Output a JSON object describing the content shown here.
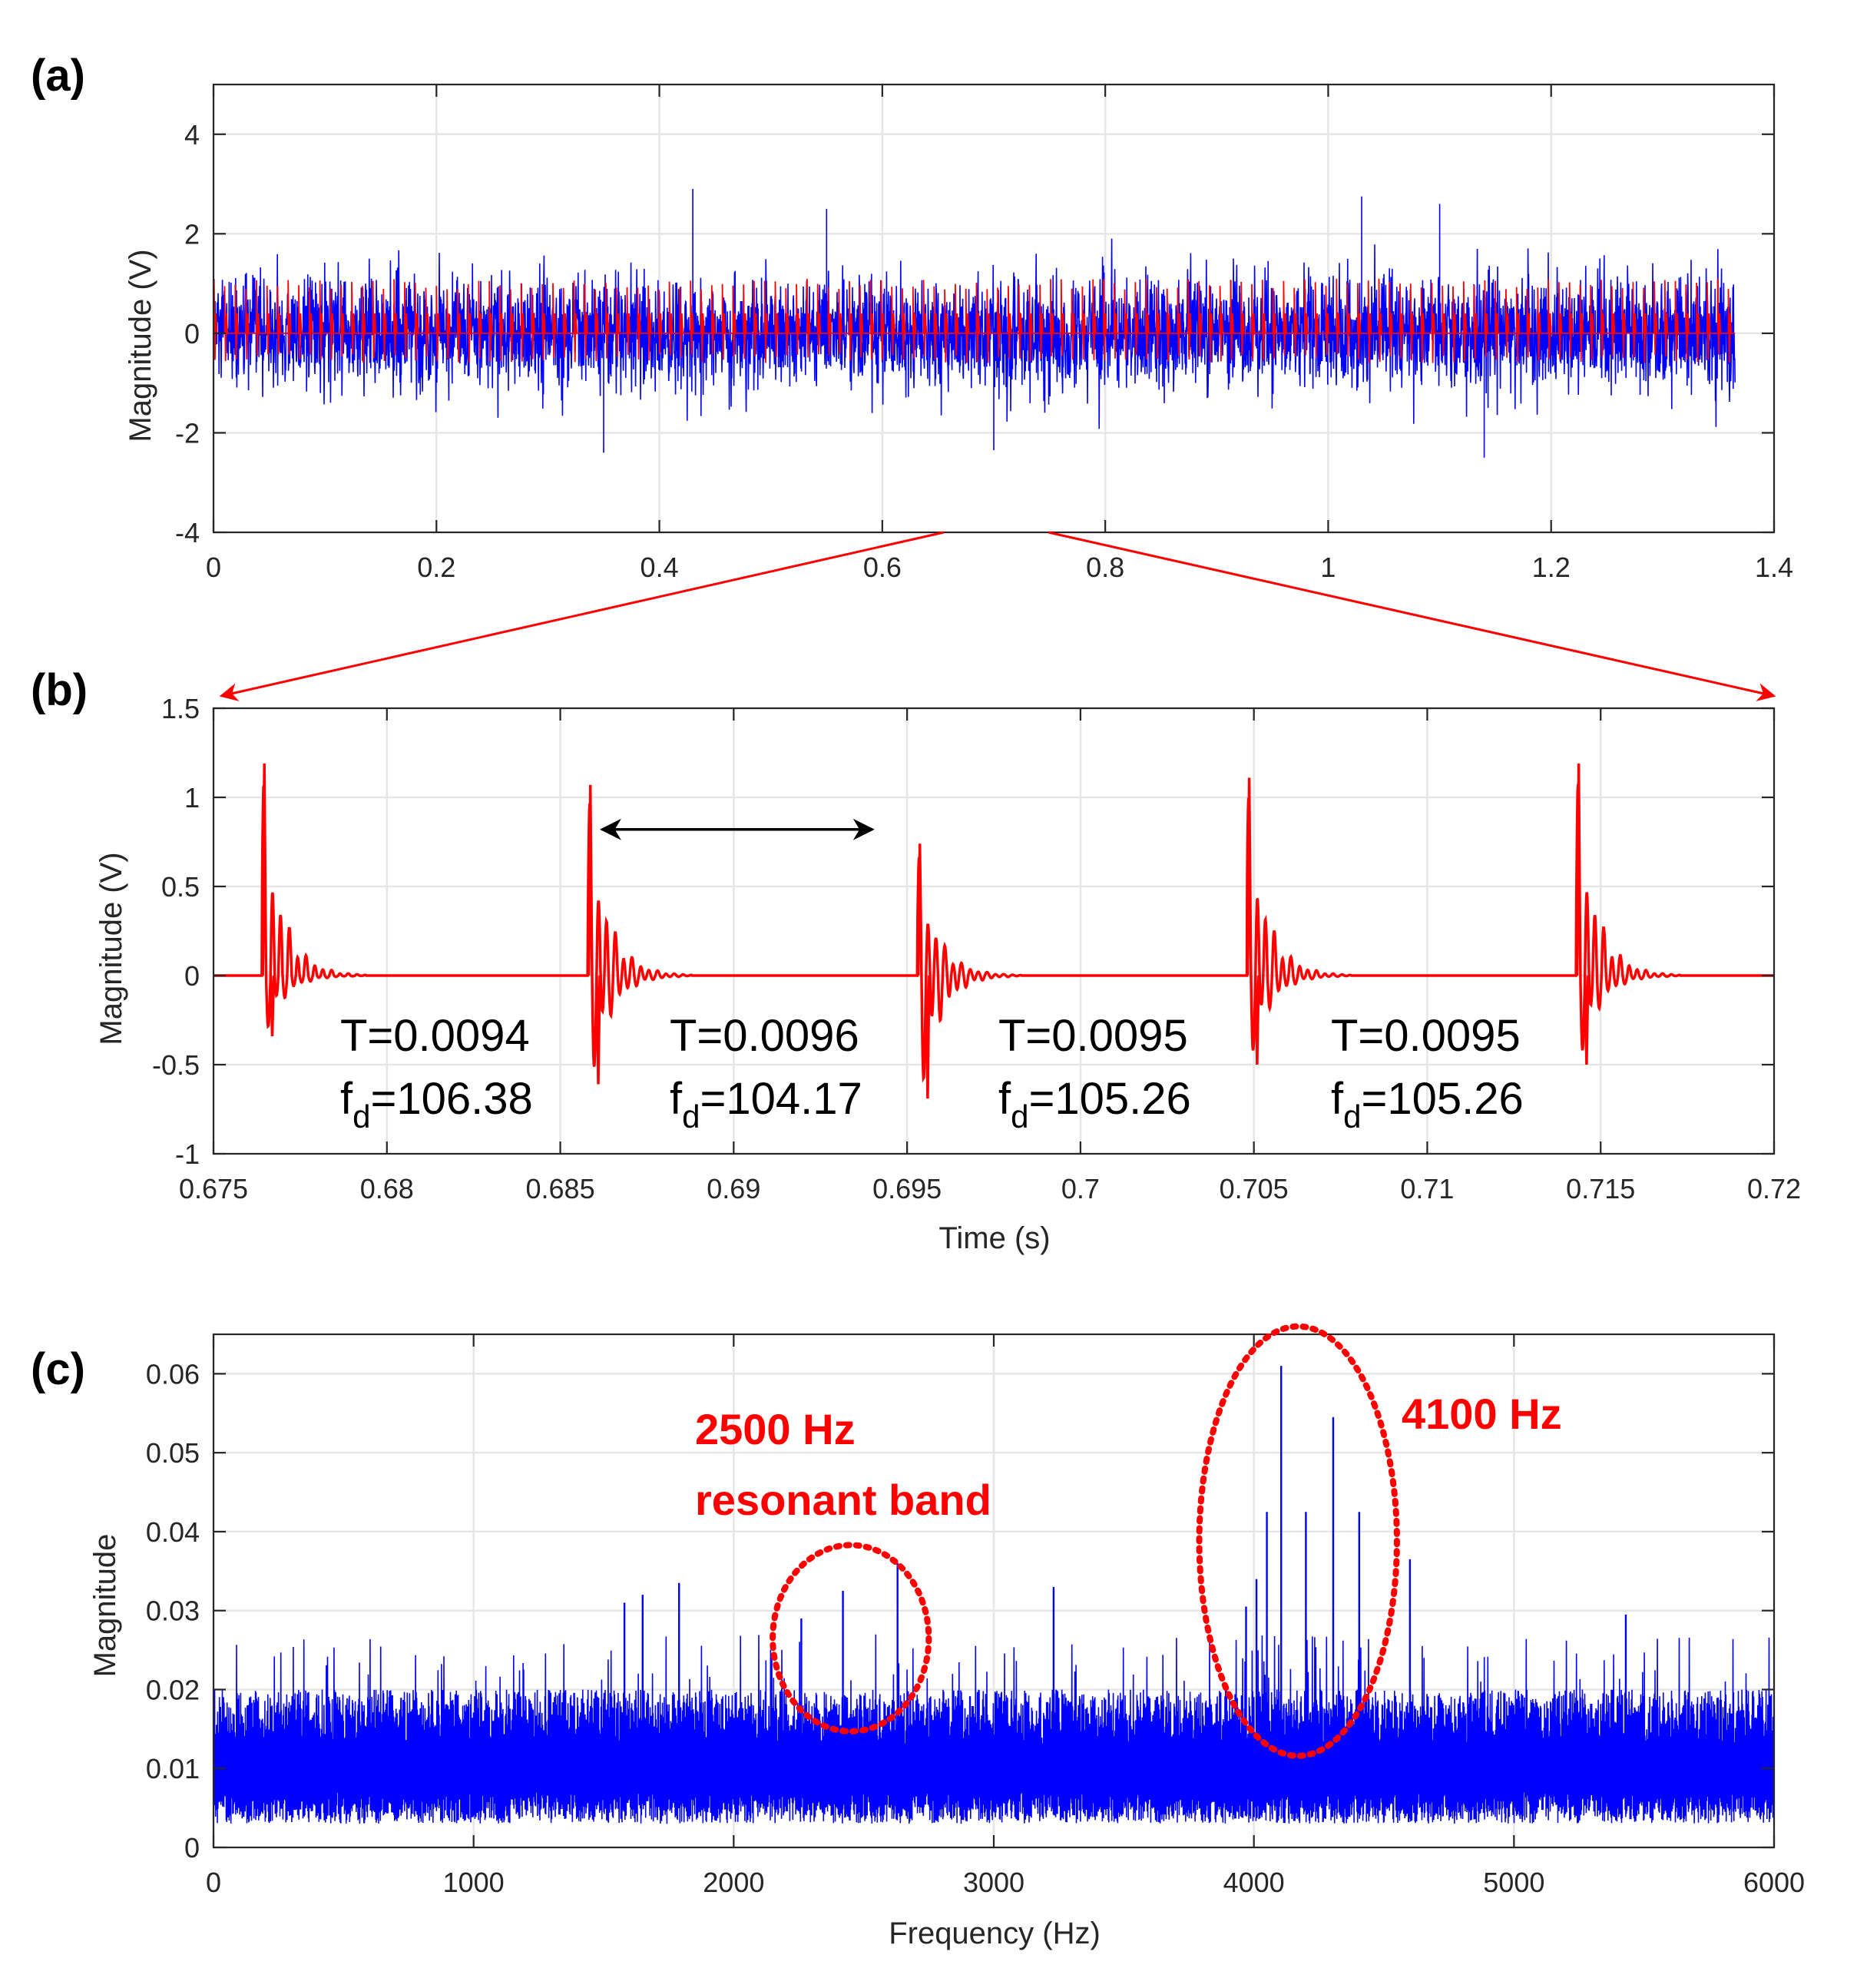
{
  "colors": {
    "signal_noisy": "#0000ff",
    "signal_clean": "#ff0000",
    "grid": "#e6e6e6",
    "axis": "#262626",
    "annotation_red": "#ff0000"
  },
  "chart_data": [
    {
      "id": "a",
      "panel_label": "(a)",
      "type": "line",
      "title": "",
      "xlabel": "",
      "ylabel": "Magnitude (V)",
      "xlim": [
        0,
        1.4
      ],
      "ylim": [
        -4,
        5
      ],
      "xticks": [
        0,
        0.2,
        0.4,
        0.6,
        0.8,
        1,
        1.2,
        1.4
      ],
      "xtick_labels": [
        "0",
        "0.2",
        "0.4",
        "0.6",
        "0.8",
        "1",
        "1.2",
        "1.4"
      ],
      "yticks": [
        -4,
        -2,
        0,
        2,
        4
      ],
      "ytick_labels": [
        "-4",
        "-2",
        "0",
        "2",
        "4"
      ],
      "grid": true,
      "series": [
        {
          "name": "Noisy vibration signal",
          "color": "#0000ff",
          "x_range": [
            0,
            1.365
          ],
          "typical_range": [
            -1.5,
            1.5
          ],
          "extremes": {
            "max": 2.9,
            "min": -2.6
          }
        },
        {
          "name": "Fault impulse signal",
          "color": "#ff0000",
          "x_range": [
            0,
            1.365
          ],
          "period": 0.0095,
          "impulse_peak": 1.1,
          "impulse_min": -0.6
        }
      ],
      "zoom_region": [
        0.675,
        0.72
      ]
    },
    {
      "id": "b",
      "panel_label": "(b)",
      "type": "line",
      "title": "",
      "xlabel": "Time (s)",
      "ylabel": "Magnitude (V)",
      "xlim": [
        0.675,
        0.72
      ],
      "ylim": [
        -1,
        1.5
      ],
      "xticks": [
        0.675,
        0.68,
        0.685,
        0.69,
        0.695,
        0.7,
        0.705,
        0.71,
        0.715,
        0.72
      ],
      "xtick_labels": [
        "0.675",
        "0.68",
        "0.685",
        "0.69",
        "0.695",
        "0.7",
        "0.705",
        "0.71",
        "0.715",
        "0.72"
      ],
      "yticks": [
        -1,
        -0.5,
        0,
        0.5,
        1,
        1.5
      ],
      "ytick_labels": [
        "-1",
        "-0.5",
        "0",
        "0.5",
        "1",
        "1.5"
      ],
      "grid": true,
      "series": [
        {
          "name": "Fault impulses",
          "color": "#ff0000",
          "impulses": [
            {
              "t": 0.6764,
              "peak": 1.19,
              "min": -0.34
            },
            {
              "t": 0.6858,
              "peak": 1.07,
              "min": -0.61
            },
            {
              "t": 0.6953,
              "peak": 0.74,
              "min": -0.69
            },
            {
              "t": 0.7048,
              "peak": 1.11,
              "min": -0.5
            },
            {
              "t": 0.7143,
              "peak": 1.19,
              "min": -0.5
            }
          ]
        }
      ],
      "annotations": [
        {
          "T_label": "T=0.0094",
          "f_prefix": "f",
          "f_sub": "d",
          "f_value": "=106.38"
        },
        {
          "T_label": "T=0.0096",
          "f_prefix": "f",
          "f_sub": "d",
          "f_value": "=104.17"
        },
        {
          "T_label": "T=0.0095",
          "f_prefix": "f",
          "f_sub": "d",
          "f_value": "=105.26"
        },
        {
          "T_label": "T=0.0095",
          "f_prefix": "f",
          "f_sub": "d",
          "f_value": "=105.26"
        }
      ],
      "period_arrow": {
        "x_start": 0.6862,
        "x_end": 0.694,
        "y": 0.82
      }
    },
    {
      "id": "c",
      "panel_label": "(c)",
      "type": "line",
      "title": "",
      "xlabel": "Frequency (Hz)",
      "ylabel": "Magnitude",
      "xlim": [
        0,
        6000
      ],
      "ylim": [
        0,
        0.065
      ],
      "xticks": [
        0,
        1000,
        2000,
        3000,
        4000,
        5000,
        6000
      ],
      "xtick_labels": [
        "0",
        "1000",
        "2000",
        "3000",
        "4000",
        "5000",
        "6000"
      ],
      "yticks": [
        0,
        0.01,
        0.02,
        0.03,
        0.04,
        0.05,
        0.06
      ],
      "ytick_labels": [
        "0",
        "0.01",
        "0.02",
        "0.03",
        "0.04",
        "0.05",
        "0.06"
      ],
      "grid": true,
      "series": [
        {
          "name": "Spectrum",
          "color": "#0000ff",
          "noise_floor_range": [
            0.002,
            0.022
          ],
          "peaks": [
            {
              "f": 1580,
              "mag": 0.031
            },
            {
              "f": 1650,
              "mag": 0.032
            },
            {
              "f": 1790,
              "mag": 0.0335
            },
            {
              "f": 2260,
              "mag": 0.029
            },
            {
              "f": 2420,
              "mag": 0.0325
            },
            {
              "f": 2630,
              "mag": 0.036
            },
            {
              "f": 3230,
              "mag": 0.033
            },
            {
              "f": 3970,
              "mag": 0.0305
            },
            {
              "f": 4010,
              "mag": 0.034
            },
            {
              "f": 4050,
              "mag": 0.0425
            },
            {
              "f": 4105,
              "mag": 0.061
            },
            {
              "f": 4200,
              "mag": 0.0425
            },
            {
              "f": 4305,
              "mag": 0.0545
            },
            {
              "f": 4405,
              "mag": 0.0425
            },
            {
              "f": 4600,
              "mag": 0.0365
            },
            {
              "f": 5430,
              "mag": 0.0295
            }
          ]
        }
      ],
      "annotations": [
        {
          "line1": "2500 Hz",
          "line2": "resonant band",
          "ellipse_center": [
            2450,
            0.0265
          ],
          "ellipse_radius": [
            300,
            0.0118
          ]
        },
        {
          "line1": "4100 Hz",
          "ellipse_center": [
            4170,
            0.0388
          ],
          "ellipse_radius": [
            380,
            0.0272
          ]
        }
      ]
    }
  ]
}
